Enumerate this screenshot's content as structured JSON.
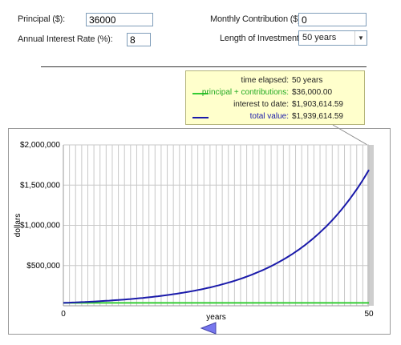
{
  "form": {
    "principal_label": "Principal ($):",
    "principal_value": "36000",
    "rate_label": "Annual Interest Rate (%):",
    "rate_value": "8",
    "contribution_label": "Monthly Contribution ($):",
    "contribution_value": "0",
    "length_label": "Length of Investment:",
    "length_value": "50 years"
  },
  "tooltip": {
    "time_label": "time elapsed:",
    "time_value": "50 years",
    "principal_label": "principal + contributions:",
    "principal_value": "$36,000.00",
    "interest_label": "interest to date:",
    "interest_value": "$1,903,614.59",
    "total_label": "total value:",
    "total_value": "$1,939,614.59"
  },
  "colors": {
    "principal": "#33cc33",
    "total": "#1a1aaa",
    "tooltip_bg": "#ffffcc",
    "slider": "#7777ee"
  },
  "chart_data": {
    "type": "line",
    "xlabel": "years",
    "ylabel": "dollars",
    "xlim": [
      0,
      50
    ],
    "ylim": [
      0,
      2000000
    ],
    "x_ticks": [
      "0",
      "50"
    ],
    "y_ticks": [
      "$500,000",
      "$1,000,000",
      "$1,500,000",
      "$2,000,000"
    ],
    "y_tick_values": [
      500000,
      1000000,
      1500000,
      2000000
    ],
    "grid": true,
    "principal": 36000,
    "rate": 0.08,
    "series": [
      {
        "color": "#33cc33",
        "x": [
          0,
          10,
          20,
          30,
          40,
          50
        ],
        "values": [
          36000,
          36000,
          36000,
          36000,
          36000,
          36000
        ]
      },
      {
        "color": "#1a1aaa",
        "x": [
          0,
          5,
          10,
          15,
          20,
          25,
          30,
          35,
          40,
          45,
          50
        ],
        "values": [
          36000,
          52896,
          77720,
          114196,
          167788,
          246537,
          362246,
          532260,
          782072,
          1149125,
          1939615
        ]
      }
    ],
    "selected_year": 50
  }
}
